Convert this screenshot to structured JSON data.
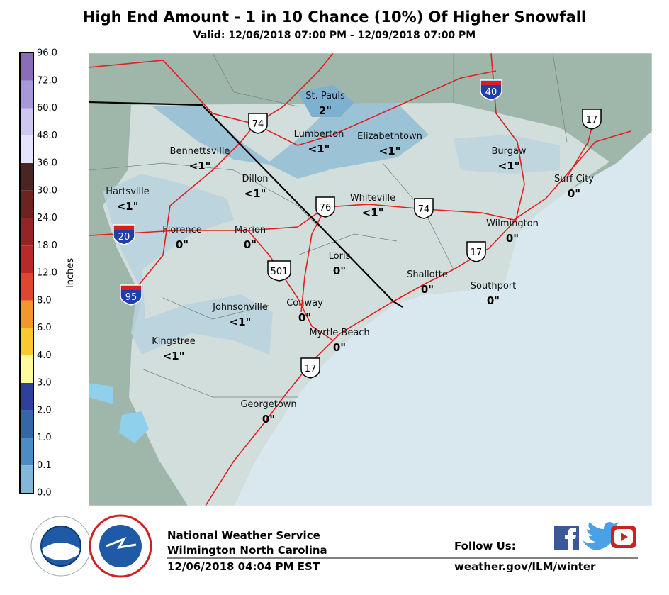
{
  "header": {
    "title": "High End Amount - 1 in 10 Chance (10%) Of Higher Snowfall",
    "subtitle": "Valid: 12/06/2018 07:00 PM - 12/09/2018 07:00 PM"
  },
  "legend": {
    "title": "Inches",
    "levels": [
      "96.0",
      "72.0",
      "60.0",
      "48.0",
      "36.0",
      "30.0",
      "24.0",
      "18.0",
      "12.0",
      "8.0",
      "6.0",
      "4.0",
      "3.0",
      "2.0",
      "1.0",
      "0.1",
      "0.0"
    ]
  },
  "cities": [
    {
      "name": "St. Pauls",
      "amount": "2\""
    },
    {
      "name": "Lumberton",
      "amount": "<1\""
    },
    {
      "name": "Elizabethtown",
      "amount": "<1\""
    },
    {
      "name": "Bennettsville",
      "amount": "<1\""
    },
    {
      "name": "Burgaw",
      "amount": "<1\""
    },
    {
      "name": "Dillon",
      "amount": "<1\""
    },
    {
      "name": "Surf City",
      "amount": "0\""
    },
    {
      "name": "Hartsville",
      "amount": "<1\""
    },
    {
      "name": "Whiteville",
      "amount": "<1\""
    },
    {
      "name": "Florence",
      "amount": "0\""
    },
    {
      "name": "Marion",
      "amount": "0\""
    },
    {
      "name": "Wilmington",
      "amount": "0\""
    },
    {
      "name": "Loris",
      "amount": "0\""
    },
    {
      "name": "Shallotte",
      "amount": "0\""
    },
    {
      "name": "Southport",
      "amount": "0\""
    },
    {
      "name": "Johnsonville",
      "amount": "<1\""
    },
    {
      "name": "Conway",
      "amount": "0\""
    },
    {
      "name": "Myrtle Beach",
      "amount": "0\""
    },
    {
      "name": "Kingstree",
      "amount": "<1\""
    },
    {
      "name": "Georgetown",
      "amount": "0\""
    }
  ],
  "shields": [
    "74",
    "40",
    "17",
    "76",
    "74",
    "20",
    "95",
    "17",
    "501",
    "17"
  ],
  "footer": {
    "office": "National Weather Service",
    "location": "Wilmington North Carolina",
    "issued": "12/06/2018 04:04 PM EST",
    "follow": "Follow Us:",
    "url": "weather.gov/ILM/winter"
  }
}
